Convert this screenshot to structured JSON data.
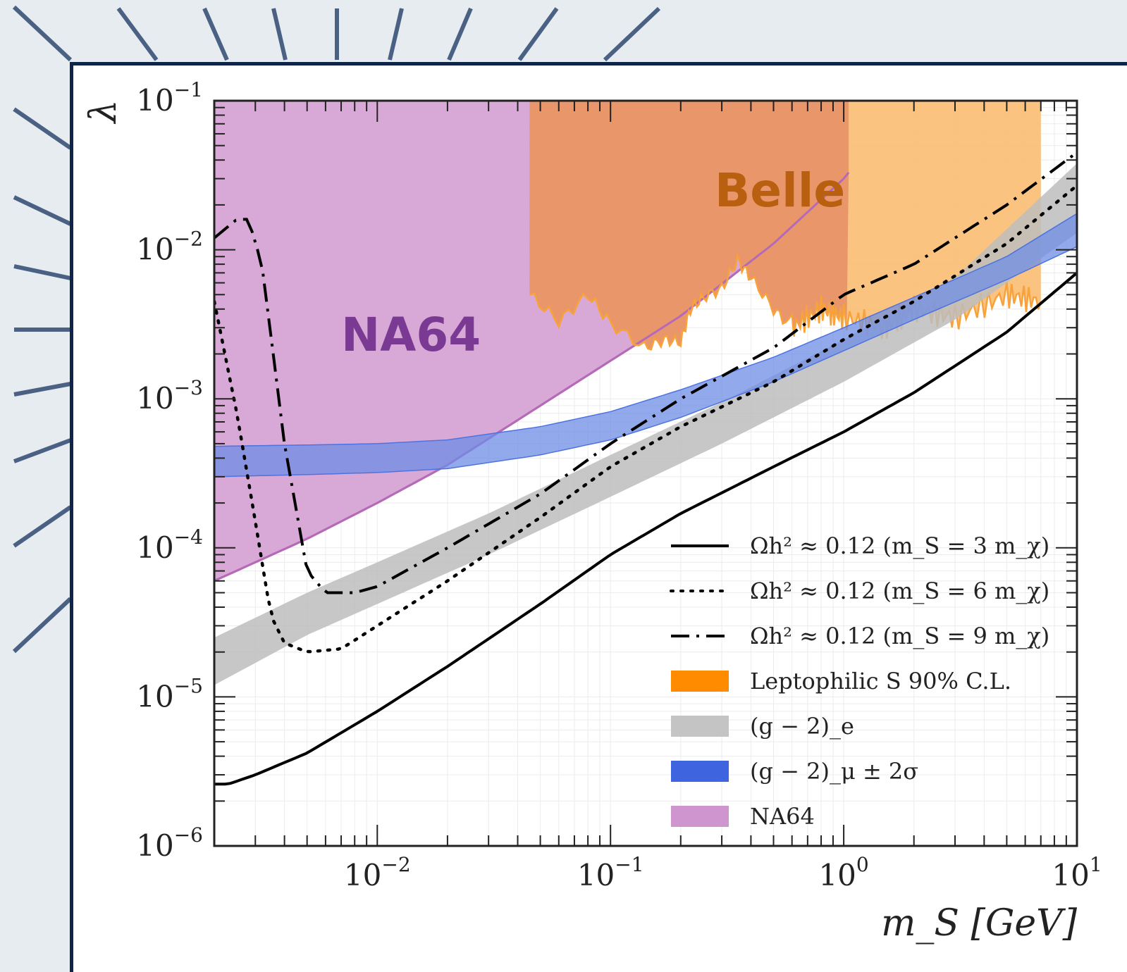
{
  "colors": {
    "background": "#e6ecf0",
    "deco_rays": "#4a6184",
    "frame": "#0e2547",
    "na64_fill": "#d8a9d6",
    "na64_edge": "#b56ab8",
    "na64_label": "#7a3a93",
    "belle_dark": "#e9966a",
    "belle_light": "#fbbd72",
    "belle_label": "#b8600f",
    "leptophilic_edge": "#f7a23a",
    "gm2_e_band": "#bdbdbd",
    "gm2_mu_band": "#6e8ee6",
    "gm2_mu_edge": "#4d73e0",
    "line": "#000000"
  },
  "labels": {
    "na64": "NA64",
    "belle": "Belle"
  },
  "chart_data": {
    "type": "area",
    "title": "",
    "xlabel": "m_S [GeV]",
    "ylabel": "λ",
    "x_scale": "log",
    "y_scale": "log",
    "xlim": [
      0.002,
      10
    ],
    "ylim": [
      1e-06,
      0.1
    ],
    "x_ticks": [
      {
        "value": 0.01,
        "base": "10",
        "exp": "−2"
      },
      {
        "value": 0.1,
        "base": "10",
        "exp": "−1"
      },
      {
        "value": 1,
        "base": "10",
        "exp": "0"
      },
      {
        "value": 10,
        "base": "10",
        "exp": "1"
      }
    ],
    "y_ticks": [
      {
        "value": 0.1,
        "base": "10",
        "exp": "−1"
      },
      {
        "value": 0.01,
        "base": "10",
        "exp": "−2"
      },
      {
        "value": 0.001,
        "base": "10",
        "exp": "−3"
      },
      {
        "value": 0.0001,
        "base": "10",
        "exp": "−4"
      },
      {
        "value": 1e-05,
        "base": "10",
        "exp": "−5"
      },
      {
        "value": 1e-06,
        "base": "10",
        "exp": "−6"
      }
    ],
    "legend_position": "bottom-right",
    "series": [
      {
        "name": "Ωh² ≈ 0.12 (m_S = 3 m_χ)",
        "style": "solid",
        "x": [
          0.002,
          0.0023,
          0.003,
          0.005,
          0.01,
          0.02,
          0.05,
          0.1,
          0.2,
          0.5,
          1,
          2,
          5,
          10
        ],
        "y": [
          2.6e-06,
          2.6e-06,
          3e-06,
          4.2e-06,
          8e-06,
          1.6e-05,
          4.2e-05,
          9e-05,
          0.00017,
          0.00035,
          0.0006,
          0.0011,
          0.0028,
          0.007
        ]
      },
      {
        "name": "Ωh² ≈ 0.12 (m_S = 6 m_χ)",
        "style": "dotted",
        "x": [
          0.002,
          0.0025,
          0.003,
          0.0035,
          0.004,
          0.005,
          0.007,
          0.01,
          0.02,
          0.05,
          0.1,
          0.2,
          0.5,
          1,
          2,
          5,
          10
        ],
        "y": [
          0.0045,
          0.0008,
          0.00015,
          3.5e-05,
          2.3e-05,
          2e-05,
          2.1e-05,
          3e-05,
          6e-05,
          0.00016,
          0.00035,
          0.00065,
          0.0013,
          0.0025,
          0.0045,
          0.011,
          0.027
        ]
      },
      {
        "name": "Ωh² ≈ 0.12 (m_S = 9 m_χ)",
        "style": "dashdot",
        "x": [
          0.002,
          0.0025,
          0.0028,
          0.0032,
          0.004,
          0.005,
          0.006,
          0.008,
          0.01,
          0.02,
          0.05,
          0.1,
          0.2,
          0.5,
          1,
          2,
          5,
          10
        ],
        "y": [
          0.012,
          0.016,
          0.016,
          0.008,
          0.0005,
          7e-05,
          5e-05,
          5e-05,
          5.5e-05,
          0.0001,
          0.00023,
          0.0005,
          0.001,
          0.0022,
          0.005,
          0.008,
          0.02,
          0.045
        ]
      }
    ],
    "regions": [
      {
        "name": "Leptophilic S 90% C.L.",
        "boundary_x": [
          0.045,
          0.06,
          0.08,
          0.1,
          0.14,
          0.17,
          0.2,
          0.22,
          0.25,
          0.3,
          0.35,
          0.4,
          0.5,
          0.6,
          0.8,
          1,
          1.5,
          2,
          3,
          5,
          7
        ],
        "boundary_y": [
          0.005,
          0.0033,
          0.005,
          0.0032,
          0.0022,
          0.0025,
          0.0024,
          0.004,
          0.0048,
          0.0055,
          0.0085,
          0.0065,
          0.004,
          0.003,
          0.004,
          0.0035,
          0.003,
          0.004,
          0.0035,
          0.005,
          0.0045
        ],
        "x_max": 7
      },
      {
        "name": "(g − 2)_e",
        "x": [
          0.002,
          0.005,
          0.01,
          0.03,
          0.1,
          0.3,
          1,
          3,
          10
        ],
        "lower": [
          1.2e-05,
          2.6e-05,
          4.2e-05,
          9e-05,
          0.00022,
          0.0005,
          0.0013,
          0.0034,
          0.013
        ],
        "upper": [
          2.5e-05,
          5e-05,
          8e-05,
          0.00017,
          0.00042,
          0.00095,
          0.0025,
          0.0065,
          0.038
        ]
      },
      {
        "name": "(g − 2)_μ ± 2σ",
        "x": [
          0.002,
          0.005,
          0.01,
          0.02,
          0.05,
          0.1,
          0.2,
          0.5,
          1,
          2,
          5,
          10
        ],
        "lower": [
          0.0003,
          0.00031,
          0.00032,
          0.00034,
          0.00042,
          0.00053,
          0.00075,
          0.0013,
          0.0021,
          0.0034,
          0.0063,
          0.0105
        ],
        "upper": [
          0.00048,
          0.00049,
          0.0005,
          0.00053,
          0.00065,
          0.00082,
          0.00115,
          0.0019,
          0.003,
          0.0048,
          0.009,
          0.0175
        ]
      },
      {
        "name": "NA64",
        "x": [
          0.002,
          0.005,
          0.01,
          0.02,
          0.05,
          0.1,
          0.2,
          0.5,
          1,
          1.05
        ],
        "lower": [
          6e-05,
          0.000115,
          0.0002,
          0.00036,
          0.0009,
          0.0018,
          0.0036,
          0.011,
          0.03,
          0.033
        ]
      }
    ],
    "belle_excluded_x_range": [
      0.045,
      1.05
    ]
  }
}
